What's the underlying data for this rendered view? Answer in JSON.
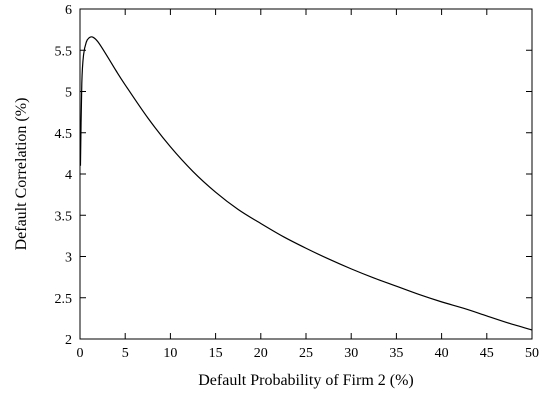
{
  "chart_data": {
    "type": "line",
    "title": "",
    "xlabel": "Default Probability of Firm 2 (%)",
    "ylabel": "Default Correlation (%)",
    "xlim": [
      0,
      50
    ],
    "ylim": [
      2,
      6
    ],
    "x_ticks": [
      0,
      5,
      10,
      15,
      20,
      25,
      30,
      35,
      40,
      45,
      50
    ],
    "y_ticks": [
      2,
      2.5,
      3,
      3.5,
      4,
      4.5,
      5,
      5.5,
      6
    ],
    "x_tick_labels": [
      "0",
      "5",
      "10",
      "15",
      "20",
      "25",
      "30",
      "35",
      "40",
      "45",
      "50"
    ],
    "y_tick_labels": [
      "2",
      "2.5",
      "3",
      "3.5",
      "4",
      "4.5",
      "5",
      "5.5",
      "6"
    ],
    "grid": false,
    "legend": "none",
    "series": [
      {
        "color": "#000000",
        "x": [
          0.05,
          0.2,
          0.4,
          0.7,
          1.0,
          1.4,
          2,
          3,
          4,
          5,
          7.5,
          10,
          12.5,
          15,
          17.5,
          20,
          22.5,
          25,
          27.5,
          30,
          32.5,
          35,
          37.5,
          40,
          42.5,
          45,
          47.5,
          50
        ],
        "y": [
          4.1,
          5.1,
          5.45,
          5.6,
          5.65,
          5.66,
          5.6,
          5.43,
          5.25,
          5.08,
          4.68,
          4.33,
          4.03,
          3.78,
          3.57,
          3.4,
          3.24,
          3.1,
          2.97,
          2.85,
          2.74,
          2.64,
          2.54,
          2.45,
          2.37,
          2.28,
          2.19,
          2.11
        ]
      }
    ]
  }
}
